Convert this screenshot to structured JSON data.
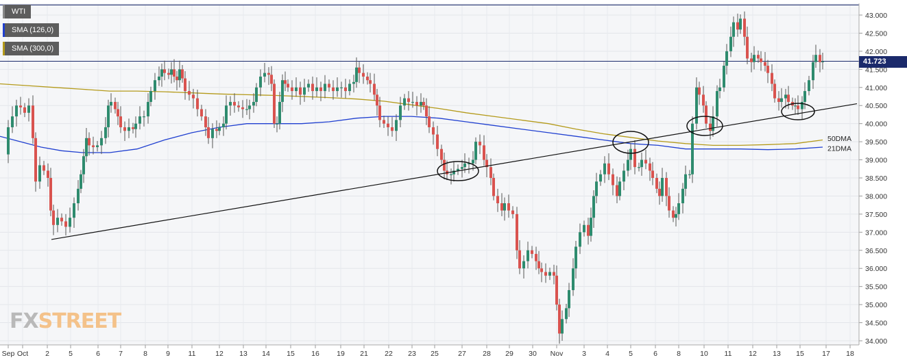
{
  "legend": [
    {
      "label": "WTI",
      "color": "#2e8b57"
    },
    {
      "label": "SMA (126,0)",
      "color": "#1f3fd0"
    },
    {
      "label": "SMA (300,0)",
      "color": "#b49a1a"
    }
  ],
  "logo": {
    "part1": "FX",
    "part2": "STREET"
  },
  "current_price": "41.723",
  "chart_data": {
    "type": "candlestick",
    "title": "",
    "y_axis": {
      "min": 33.9,
      "max": 43.25,
      "step": 0.5,
      "side": "right",
      "ticks": [
        "34.000",
        "34.500",
        "35.000",
        "35.500",
        "36.000",
        "36.500",
        "37.000",
        "37.500",
        "38.000",
        "38.500",
        "39.000",
        "39.500",
        "40.000",
        "40.500",
        "41.000",
        "41.500",
        "42.000",
        "42.500",
        "43.000"
      ]
    },
    "x_axis": {
      "labels": [
        "Sep",
        "Oct",
        "2",
        "5",
        "6",
        "7",
        "8",
        "9",
        "11",
        "12",
        "13",
        "14",
        "15",
        "16",
        "19",
        "21",
        "22",
        "23",
        "25",
        "27",
        "28",
        "29",
        "30",
        "Nov",
        "3",
        "4",
        "5",
        "6",
        "8",
        "10",
        "11",
        "12",
        "13",
        "15",
        "17",
        "18"
      ]
    },
    "grid": true,
    "current_price": 41.723,
    "high_line": 43.28,
    "series": [
      {
        "name": "SMA (126,0)",
        "color": "#1f3fd0",
        "points": [
          [
            0,
            39.65
          ],
          [
            30,
            39.5
          ],
          [
            60,
            39.35
          ],
          [
            90,
            39.25
          ],
          [
            120,
            39.2
          ],
          [
            160,
            39.2
          ],
          [
            200,
            39.3
          ],
          [
            240,
            39.55
          ],
          [
            280,
            39.75
          ],
          [
            320,
            39.9
          ],
          [
            360,
            40.0
          ],
          [
            400,
            40.0
          ],
          [
            440,
            40.0
          ],
          [
            480,
            40.05
          ],
          [
            520,
            40.15
          ],
          [
            560,
            40.2
          ],
          [
            600,
            40.2
          ],
          [
            640,
            40.15
          ],
          [
            680,
            40.05
          ],
          [
            720,
            39.95
          ],
          [
            760,
            39.85
          ],
          [
            800,
            39.75
          ],
          [
            840,
            39.65
          ],
          [
            880,
            39.55
          ],
          [
            920,
            39.45
          ],
          [
            960,
            39.4
          ],
          [
            1000,
            39.3
          ],
          [
            1040,
            39.3
          ],
          [
            1080,
            39.3
          ],
          [
            1120,
            39.28
          ],
          [
            1160,
            39.3
          ],
          [
            1200,
            39.35
          ]
        ]
      },
      {
        "name": "SMA (300,0)",
        "color": "#b49a1a",
        "points": [
          [
            0,
            41.1
          ],
          [
            40,
            41.05
          ],
          [
            80,
            41.0
          ],
          [
            120,
            40.95
          ],
          [
            160,
            40.9
          ],
          [
            200,
            40.9
          ],
          [
            240,
            40.88
          ],
          [
            280,
            40.85
          ],
          [
            320,
            40.82
          ],
          [
            360,
            40.8
          ],
          [
            400,
            40.78
          ],
          [
            440,
            40.75
          ],
          [
            480,
            40.72
          ],
          [
            520,
            40.68
          ],
          [
            560,
            40.62
          ],
          [
            600,
            40.52
          ],
          [
            640,
            40.42
          ],
          [
            680,
            40.3
          ],
          [
            720,
            40.2
          ],
          [
            760,
            40.1
          ],
          [
            800,
            40.0
          ],
          [
            840,
            39.85
          ],
          [
            880,
            39.72
          ],
          [
            920,
            39.62
          ],
          [
            960,
            39.52
          ],
          [
            1000,
            39.45
          ],
          [
            1040,
            39.4
          ],
          [
            1080,
            39.4
          ],
          [
            1120,
            39.42
          ],
          [
            1160,
            39.45
          ],
          [
            1200,
            39.55
          ]
        ]
      }
    ],
    "annotations": [
      {
        "text": "50DMA",
        "x": 1207,
        "y": 39.6
      },
      {
        "text": "21DMA",
        "x": 1207,
        "y": 39.32
      }
    ],
    "trendline": {
      "from": [
        75,
        36.8
      ],
      "to": [
        1250,
        40.55
      ]
    }
  }
}
